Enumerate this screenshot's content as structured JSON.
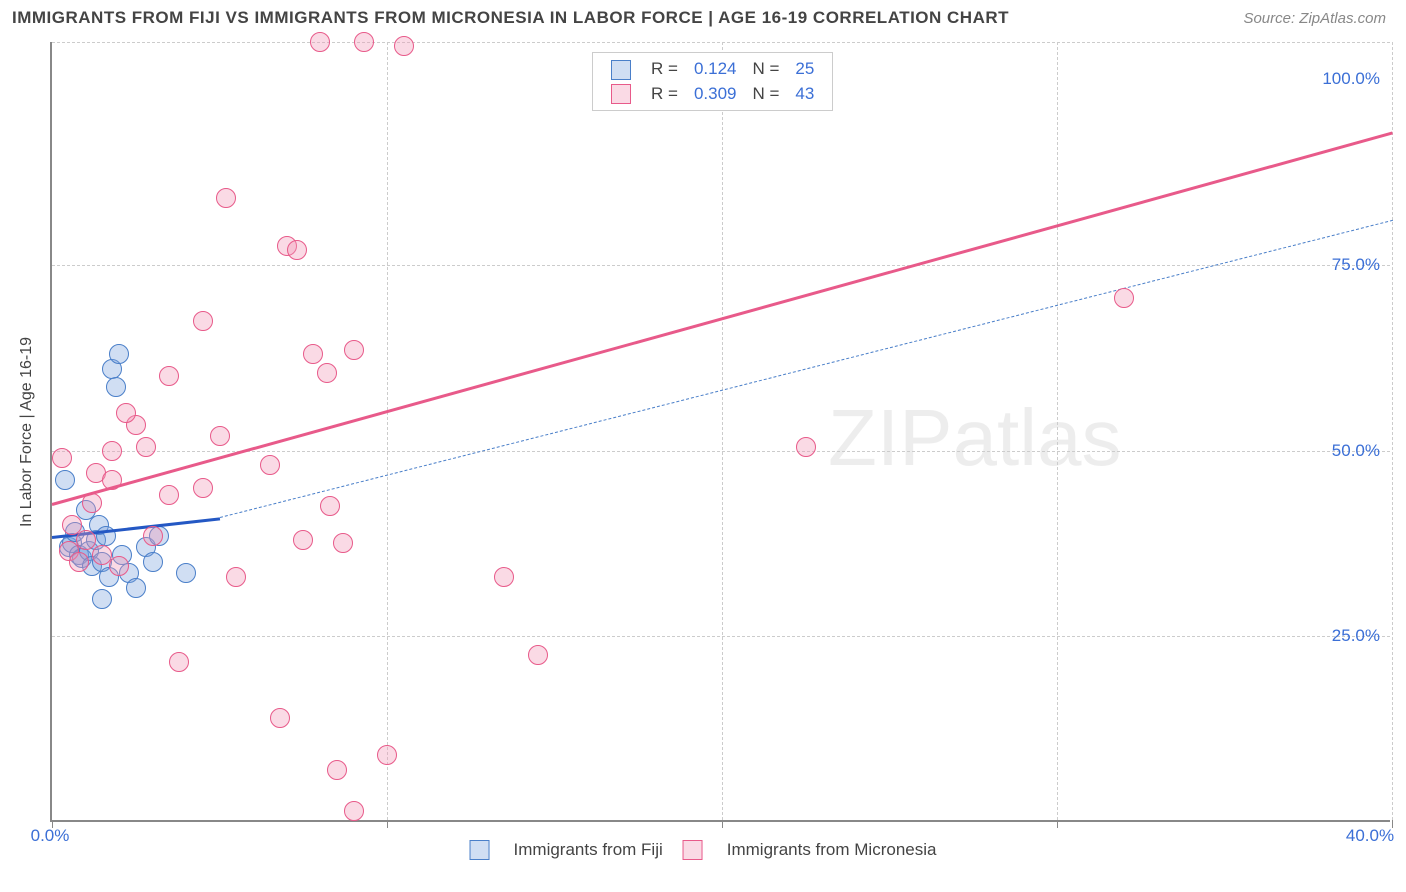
{
  "title": "IMMIGRANTS FROM FIJI VS IMMIGRANTS FROM MICRONESIA IN LABOR FORCE | AGE 16-19 CORRELATION CHART",
  "source": "Source: ZipAtlas.com",
  "watermark": "ZIPatlas",
  "y_axis_label": "In Labor Force | Age 16-19",
  "chart": {
    "type": "scatter",
    "xlim": [
      0,
      40
    ],
    "ylim": [
      0,
      105
    ],
    "x_ticks": [
      0,
      10,
      20,
      30,
      40
    ],
    "x_tick_labels": [
      "0.0%",
      "",
      "",
      "",
      "40.0%"
    ],
    "y_ticks": [
      25,
      50,
      75,
      100
    ],
    "y_tick_labels": [
      "25.0%",
      "50.0%",
      "75.0%",
      "100.0%"
    ],
    "y_grid": [
      25,
      50,
      75,
      105
    ],
    "x_grid": [
      10,
      20,
      30,
      40
    ],
    "background_color": "#ffffff",
    "grid_color": "#cccccc",
    "point_radius": 10,
    "series": [
      {
        "name": "Immigrants from Fiji",
        "fill": "rgba(120,160,220,0.35)",
        "stroke": "#4a7fc9",
        "r_value": "0.124",
        "n_value": "25",
        "trend": {
          "x1": 0,
          "y1": 38.5,
          "x2": 5,
          "y2": 41,
          "solid": true,
          "color": "#2458c4",
          "width": 3
        },
        "trend_dash": {
          "x1": 5,
          "y1": 41,
          "x2": 40,
          "y2": 81,
          "color": "#4a7fc9",
          "width": 1.5
        },
        "points": [
          [
            0.4,
            46
          ],
          [
            0.5,
            37
          ],
          [
            0.6,
            37.5
          ],
          [
            0.7,
            39
          ],
          [
            0.8,
            36
          ],
          [
            0.9,
            35.5
          ],
          [
            1.0,
            42
          ],
          [
            1.1,
            36.5
          ],
          [
            1.2,
            34.5
          ],
          [
            1.3,
            38
          ],
          [
            1.4,
            40
          ],
          [
            1.5,
            35
          ],
          [
            1.6,
            38.5
          ],
          [
            1.7,
            33
          ],
          [
            1.8,
            61
          ],
          [
            1.9,
            58.5
          ],
          [
            2.0,
            63
          ],
          [
            2.1,
            36
          ],
          [
            2.3,
            33.5
          ],
          [
            2.5,
            31.5
          ],
          [
            2.8,
            37
          ],
          [
            3.0,
            35
          ],
          [
            3.2,
            38.5
          ],
          [
            4.0,
            33.5
          ],
          [
            1.5,
            30
          ]
        ]
      },
      {
        "name": "Immigrants from Micronesia",
        "fill": "rgba(240,150,180,0.35)",
        "stroke": "#e85a8a",
        "r_value": "0.309",
        "n_value": "43",
        "trend": {
          "x1": 0,
          "y1": 43,
          "x2": 40,
          "y2": 93,
          "solid": true,
          "color": "#e85a8a",
          "width": 3
        },
        "points": [
          [
            0.3,
            49
          ],
          [
            0.5,
            36.5
          ],
          [
            0.6,
            40
          ],
          [
            0.8,
            35
          ],
          [
            1.0,
            38
          ],
          [
            1.2,
            43
          ],
          [
            1.3,
            47
          ],
          [
            1.5,
            36
          ],
          [
            1.8,
            50
          ],
          [
            1.8,
            46
          ],
          [
            2.0,
            34.5
          ],
          [
            2.5,
            53.5
          ],
          [
            2.8,
            50.5
          ],
          [
            3.0,
            38.5
          ],
          [
            3.5,
            60
          ],
          [
            3.5,
            44
          ],
          [
            3.8,
            21.5
          ],
          [
            4.5,
            45
          ],
          [
            4.5,
            67.5
          ],
          [
            5.0,
            52
          ],
          [
            5.2,
            84
          ],
          [
            5.5,
            33
          ],
          [
            6.5,
            48
          ],
          [
            6.8,
            14
          ],
          [
            7.0,
            77.5
          ],
          [
            7.3,
            77
          ],
          [
            7.5,
            38
          ],
          [
            7.8,
            63
          ],
          [
            8.0,
            105
          ],
          [
            8.2,
            60.5
          ],
          [
            8.3,
            42.5
          ],
          [
            8.5,
            7
          ],
          [
            8.7,
            37.5
          ],
          [
            9.0,
            63.5
          ],
          [
            9.3,
            105
          ],
          [
            10.0,
            9
          ],
          [
            10.5,
            104.5
          ],
          [
            13.5,
            33
          ],
          [
            14.5,
            22.5
          ],
          [
            22.5,
            50.5
          ],
          [
            32.0,
            70.5
          ],
          [
            9.0,
            1.5
          ],
          [
            2.2,
            55
          ]
        ]
      }
    ]
  },
  "legend_top": {
    "r_label": "R  =",
    "n_label": "N  ="
  },
  "legend_bottom": {
    "labels": [
      "Immigrants from Fiji",
      "Immigrants from Micronesia"
    ]
  },
  "colors": {
    "text": "#444444",
    "link_blue": "#3b6fd6",
    "fiji_fill": "rgba(155,190,235,0.6)",
    "fiji_stroke": "#4a7fc9",
    "micro_fill": "rgba(248,180,200,0.6)",
    "micro_stroke": "#e85a8a"
  }
}
